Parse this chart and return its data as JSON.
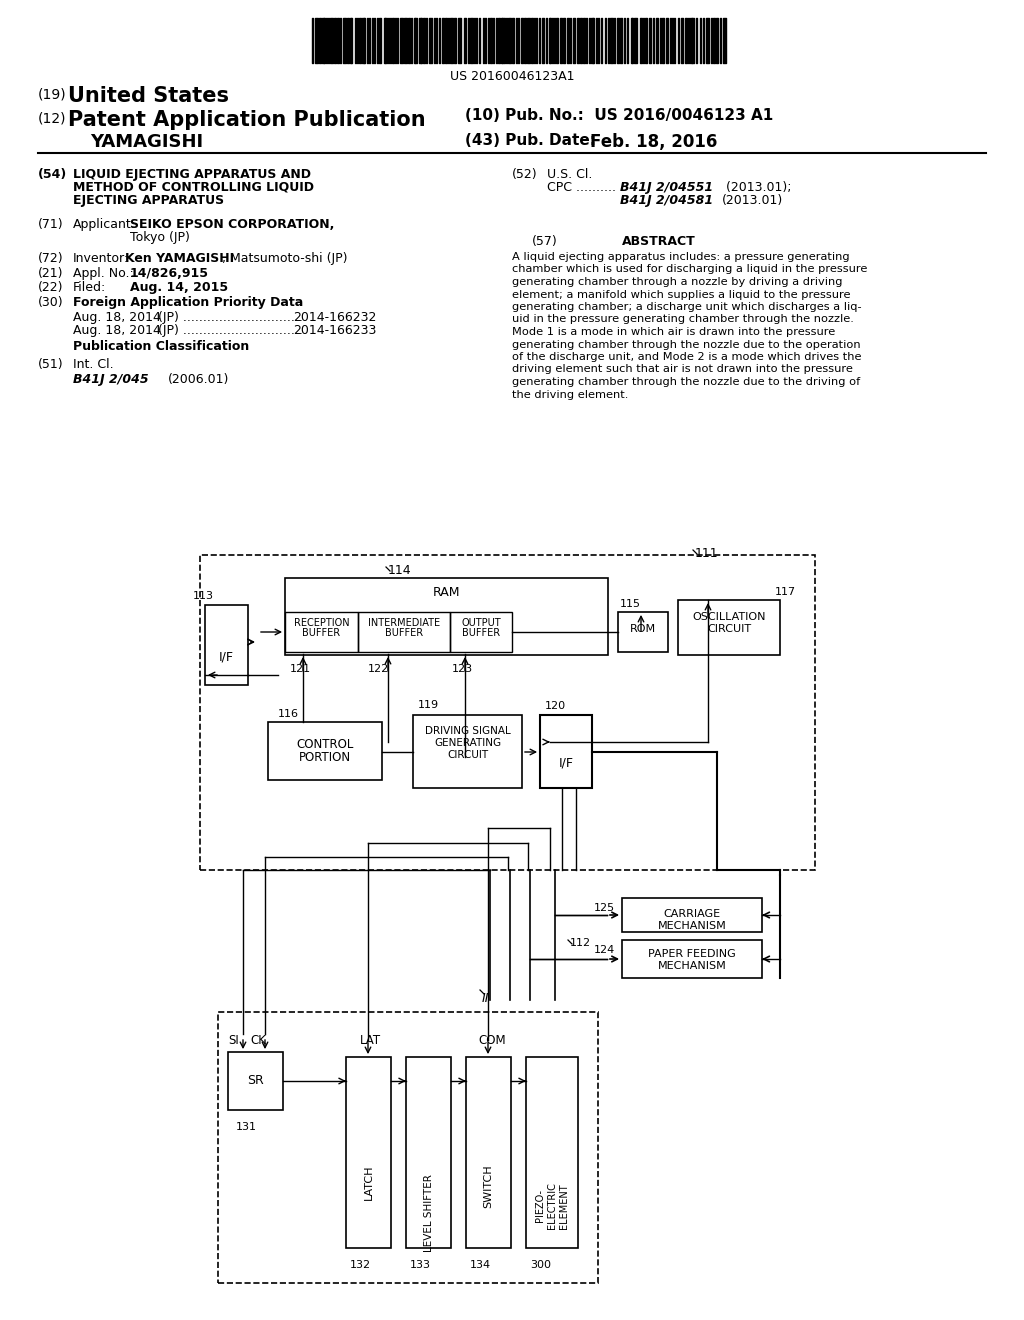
{
  "bg_color": "#ffffff",
  "text_color": "#000000",
  "patent_num_text": "US 20160046123A1",
  "abstract_lines": [
    "A liquid ejecting apparatus includes: a pressure generating",
    "chamber which is used for discharging a liquid in the pressure",
    "generating chamber through a nozzle by driving a driving",
    "element; a manifold which supplies a liquid to the pressure",
    "generating chamber; a discharge unit which discharges a liq-",
    "uid in the pressure generating chamber through the nozzle.",
    "Mode 1 is a mode in which air is drawn into the pressure",
    "generating chamber through the nozzle due to the operation",
    "of the discharge unit, and Mode 2 is a mode which drives the",
    "driving element such that air is not drawn into the pressure",
    "generating chamber through the nozzle due to the driving of",
    "the driving element."
  ]
}
